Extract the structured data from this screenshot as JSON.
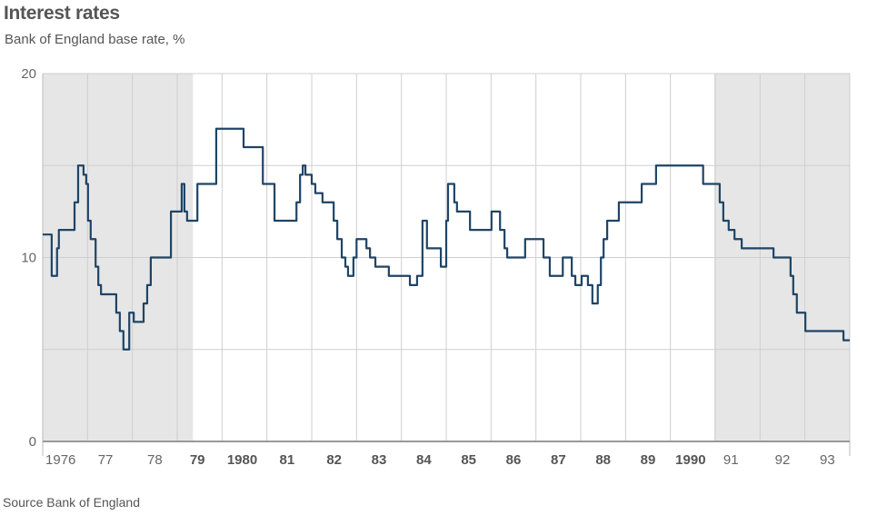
{
  "chart_data": {
    "type": "line",
    "title": "Interest rates",
    "subtitle": "Bank of England base rate, %",
    "source": "Source Bank of England",
    "xlim": [
      1976,
      1994
    ],
    "ylim": [
      0,
      20
    ],
    "yticks": [
      "0",
      "10",
      "20"
    ],
    "ytick_values": [
      0,
      10,
      20
    ],
    "grid": true,
    "shaded_periods": [
      [
        1976,
        1979.35
      ],
      [
        1990.98,
        1994
      ]
    ],
    "xtick_labels": [
      {
        "label": "1976",
        "year": 1976.4,
        "emphasis": false
      },
      {
        "label": "77",
        "year": 1977.4,
        "emphasis": false
      },
      {
        "label": "78",
        "year": 1978.5,
        "emphasis": false
      },
      {
        "label": "79",
        "year": 1979.45,
        "emphasis": true
      },
      {
        "label": "1980",
        "year": 1980.45,
        "emphasis": true
      },
      {
        "label": "81",
        "year": 1981.45,
        "emphasis": true
      },
      {
        "label": "82",
        "year": 1982.5,
        "emphasis": true
      },
      {
        "label": "83",
        "year": 1983.5,
        "emphasis": true
      },
      {
        "label": "84",
        "year": 1984.5,
        "emphasis": true
      },
      {
        "label": "85",
        "year": 1985.5,
        "emphasis": true
      },
      {
        "label": "86",
        "year": 1986.5,
        "emphasis": true
      },
      {
        "label": "87",
        "year": 1987.5,
        "emphasis": true
      },
      {
        "label": "88",
        "year": 1988.5,
        "emphasis": true
      },
      {
        "label": "89",
        "year": 1989.5,
        "emphasis": true
      },
      {
        "label": "1990",
        "year": 1990.45,
        "emphasis": true
      },
      {
        "label": "91",
        "year": 1991.35,
        "emphasis": false
      },
      {
        "label": "92",
        "year": 1992.5,
        "emphasis": false
      },
      {
        "label": "93",
        "year": 1993.5,
        "emphasis": false
      }
    ],
    "line_color": "#1f4466",
    "shade_color": "#e6e6e6",
    "series": [
      {
        "name": "Bank of England base rate",
        "step_points": [
          [
            1976.0,
            11.25
          ],
          [
            1976.2,
            9
          ],
          [
            1976.32,
            10.5
          ],
          [
            1976.36,
            11.5
          ],
          [
            1976.71,
            13
          ],
          [
            1976.79,
            15
          ],
          [
            1976.91,
            14.5
          ],
          [
            1976.97,
            14
          ],
          [
            1977.01,
            12
          ],
          [
            1977.07,
            11
          ],
          [
            1977.18,
            9.5
          ],
          [
            1977.24,
            8.5
          ],
          [
            1977.3,
            8
          ],
          [
            1977.38,
            8
          ],
          [
            1977.64,
            7
          ],
          [
            1977.72,
            6
          ],
          [
            1977.8,
            5
          ],
          [
            1977.93,
            7
          ],
          [
            1978.03,
            6.5
          ],
          [
            1978.25,
            7.5
          ],
          [
            1978.33,
            8.5
          ],
          [
            1978.41,
            10
          ],
          [
            1978.86,
            12.5
          ],
          [
            1979.1,
            14
          ],
          [
            1979.16,
            12.5
          ],
          [
            1979.22,
            12
          ],
          [
            1979.45,
            14
          ],
          [
            1979.87,
            17
          ],
          [
            1980.48,
            16
          ],
          [
            1980.91,
            14
          ],
          [
            1981.17,
            12
          ],
          [
            1981.66,
            13
          ],
          [
            1981.74,
            14.5
          ],
          [
            1981.8,
            15
          ],
          [
            1981.86,
            14.5
          ],
          [
            1982.0,
            14
          ],
          [
            1982.08,
            13.5
          ],
          [
            1982.24,
            13
          ],
          [
            1982.49,
            12
          ],
          [
            1982.57,
            11
          ],
          [
            1982.67,
            10
          ],
          [
            1982.75,
            9.5
          ],
          [
            1982.81,
            9
          ],
          [
            1982.93,
            10
          ],
          [
            1983.0,
            11
          ],
          [
            1983.22,
            10.5
          ],
          [
            1983.3,
            10
          ],
          [
            1983.42,
            9.5
          ],
          [
            1983.72,
            9
          ],
          [
            1984.19,
            8.5
          ],
          [
            1984.35,
            9
          ],
          [
            1984.47,
            12
          ],
          [
            1984.57,
            10.5
          ],
          [
            1984.88,
            9.5
          ],
          [
            1985.0,
            12
          ],
          [
            1985.04,
            14
          ],
          [
            1985.18,
            13
          ],
          [
            1985.24,
            12.5
          ],
          [
            1985.53,
            11.5
          ],
          [
            1986.01,
            12.5
          ],
          [
            1986.2,
            11.5
          ],
          [
            1986.3,
            10.5
          ],
          [
            1986.36,
            10
          ],
          [
            1986.76,
            11
          ],
          [
            1987.17,
            10
          ],
          [
            1987.31,
            9
          ],
          [
            1987.6,
            10
          ],
          [
            1987.8,
            9
          ],
          [
            1987.88,
            8.5
          ],
          [
            1988.02,
            9
          ],
          [
            1988.16,
            8.5
          ],
          [
            1988.26,
            7.5
          ],
          [
            1988.38,
            8.5
          ],
          [
            1988.45,
            10
          ],
          [
            1988.51,
            11
          ],
          [
            1988.59,
            12
          ],
          [
            1988.85,
            13
          ],
          [
            1989.36,
            14
          ],
          [
            1989.68,
            15
          ],
          [
            1990.73,
            14
          ],
          [
            1991.1,
            13
          ],
          [
            1991.18,
            12
          ],
          [
            1991.3,
            11.5
          ],
          [
            1991.43,
            11
          ],
          [
            1991.59,
            10.5
          ],
          [
            1992.3,
            10
          ],
          [
            1992.68,
            9
          ],
          [
            1992.74,
            8
          ],
          [
            1992.82,
            7
          ],
          [
            1993.01,
            6
          ],
          [
            1993.86,
            5.5
          ],
          [
            1994.0,
            5.5
          ]
        ]
      }
    ]
  }
}
